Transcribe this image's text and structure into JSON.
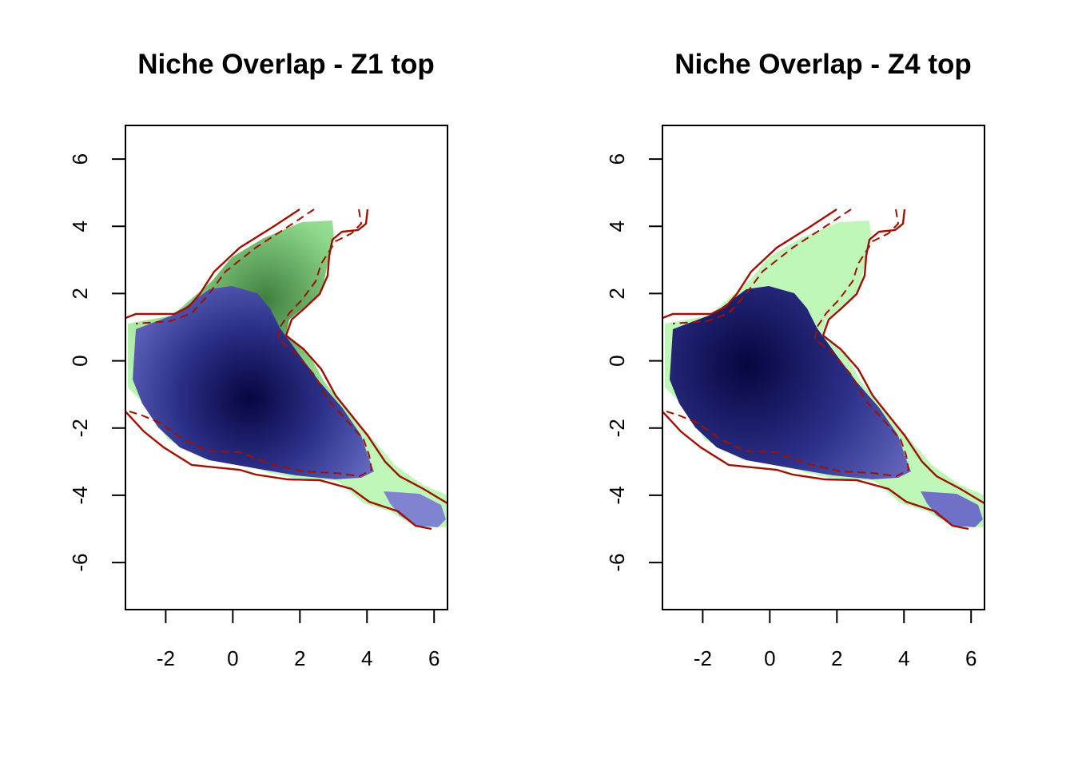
{
  "figure": {
    "colors": {
      "niche_green": "#b8f5b0",
      "niche_green_dense": "#3a7a3a",
      "niche_blue_light": "#a6a8f0",
      "niche_blue_dense": "#0a0a4e",
      "contour": "#a01000"
    }
  },
  "chart_data": [
    {
      "type": "heatmap",
      "title": "Niche Overlap - Z1 top",
      "xlabel": "",
      "ylabel": "",
      "xlim": [
        -3.2,
        6.4
      ],
      "ylim": [
        -7.4,
        7.0
      ],
      "xticks": [
        -2,
        0,
        2,
        4,
        6
      ],
      "yticks": [
        6,
        4,
        2,
        0,
        -2,
        -4,
        -6
      ],
      "density_peak_green": [
        2.0,
        1.8
      ],
      "density_peak_blue": [
        0.5,
        -1.2
      ],
      "legend": "none",
      "grid": false
    },
    {
      "type": "heatmap",
      "title": "Niche Overlap - Z4 top",
      "xlabel": "",
      "ylabel": "",
      "xlim": [
        -3.2,
        6.4
      ],
      "ylim": [
        -7.4,
        7.0
      ],
      "xticks": [
        -2,
        0,
        2,
        4,
        6
      ],
      "yticks": [
        6,
        4,
        2,
        0,
        -2,
        -4,
        -6
      ],
      "density_peak_blue": [
        -0.6,
        -0.1
      ],
      "legend": "none",
      "grid": false
    }
  ]
}
